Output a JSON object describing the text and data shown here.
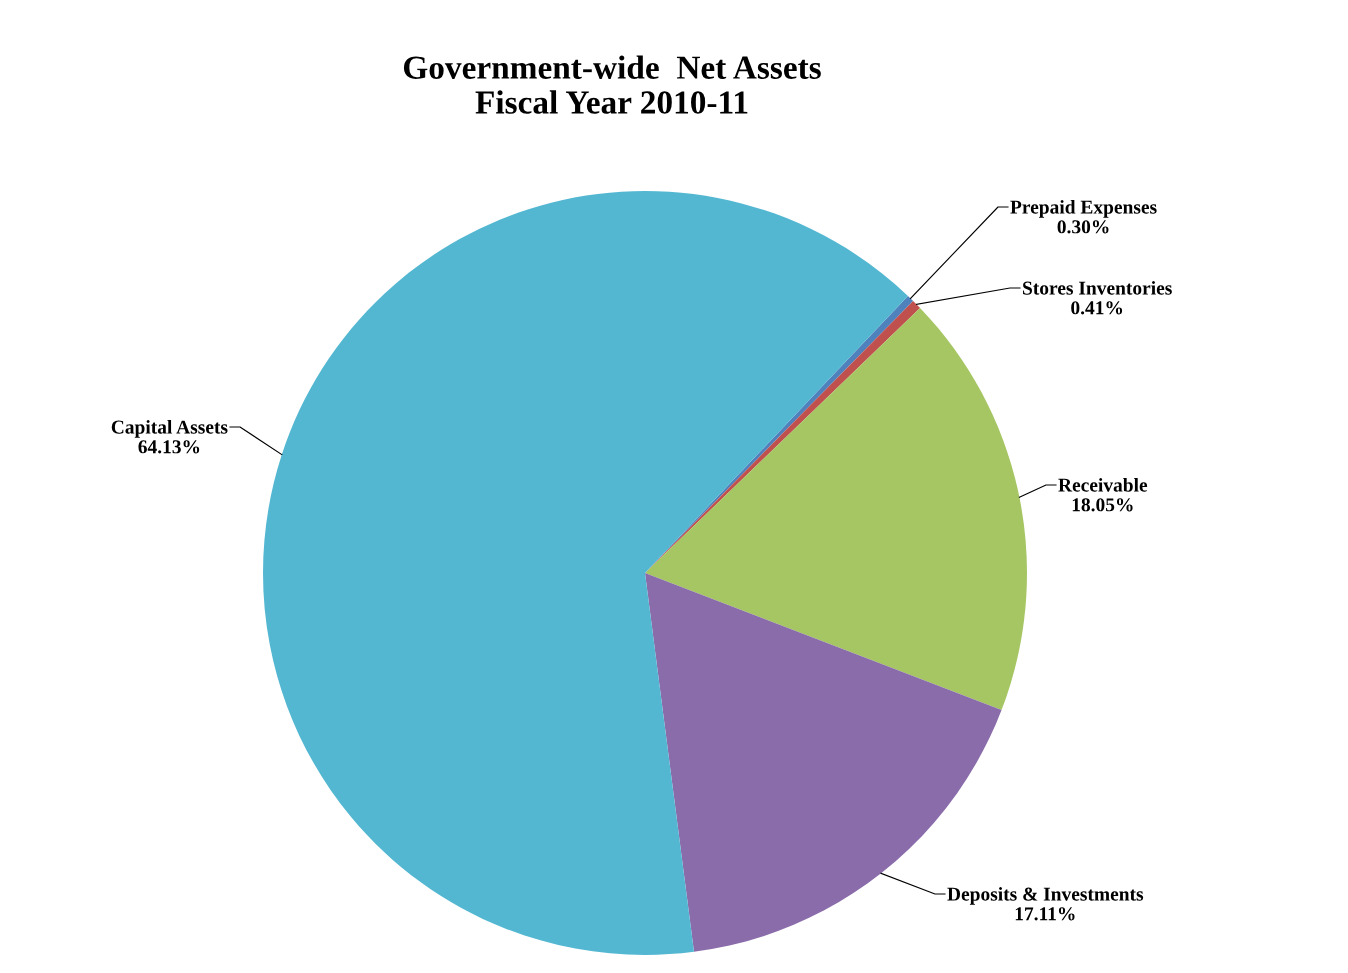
{
  "chart_data": {
    "type": "pie",
    "title": "Government-wide  Net Assets\nFiscal Year 2010-11",
    "categories": [
      "Prepaid Expenses",
      "Stores Inventories",
      "Receivable",
      "Deposits & Investments",
      "Capital Assets"
    ],
    "values": [
      0.3,
      0.41,
      18.05,
      17.11,
      64.13
    ],
    "value_labels": [
      "0.30%",
      "0.41%",
      "18.05%",
      "17.11%",
      "64.13%"
    ],
    "colors": [
      "#4f81bd",
      "#c0504d",
      "#a5c663",
      "#8a6cab",
      "#53b7d2"
    ],
    "legend": false
  }
}
